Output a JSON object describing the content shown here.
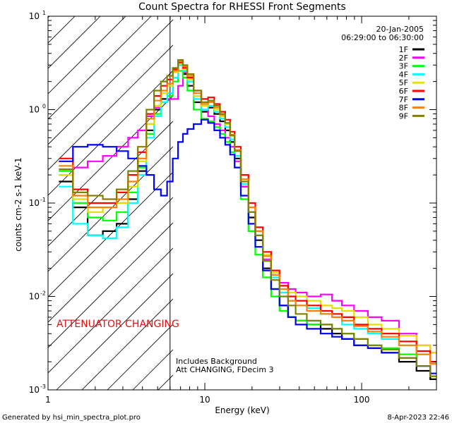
{
  "chart_data": {
    "type": "line",
    "title": "Count Spectra for RHESSI Front Segments",
    "xlabel": "Energy (keV)",
    "ylabel": "counts cm-2 s-1 keV-1",
    "xscale": "log",
    "yscale": "log",
    "xlim": [
      1,
      300
    ],
    "ylim": [
      0.001,
      10
    ],
    "x_tick_labels": [
      "1",
      "10",
      "100"
    ],
    "y_tick_labels": [
      "10",
      "10",
      "10",
      "10",
      "10"
    ],
    "y_tick_exponents": [
      "-3",
      "-2",
      "-1",
      "0",
      "1"
    ],
    "legend": {
      "position": "top-right",
      "date": "20-Jan-2005",
      "time_range": "06:29:00 to 06:30:00"
    },
    "annotations": {
      "attenuator": "ATTENUATOR CHANGING",
      "background_note": "Includes Background",
      "att_note": "Att CHANGING, FDecim 3",
      "attenuator_boundary_keV": 6
    },
    "footer_left": "Generated by hsi_min_spectra_plot.pro",
    "footer_right": "8-Apr-2023 22:46",
    "energy_keV": [
      1.3,
      1.6,
      2.0,
      2.5,
      3.0,
      3.5,
      4.0,
      4.5,
      5.0,
      5.5,
      6.0,
      6.5,
      7.0,
      7.5,
      8.0,
      9.0,
      10.0,
      11,
      12,
      13,
      14,
      15,
      16,
      18,
      20,
      22,
      25,
      28,
      32,
      36,
      40,
      50,
      60,
      70,
      80,
      100,
      120,
      150,
      200,
      250,
      300
    ],
    "series": [
      {
        "name": "1F",
        "color": "#000000",
        "values": [
          0.17,
          0.09,
          0.045,
          0.05,
          0.06,
          0.11,
          0.22,
          0.6,
          1.0,
          1.3,
          1.5,
          2.2,
          3.0,
          2.4,
          1.8,
          1.2,
          0.95,
          1.05,
          0.9,
          0.75,
          0.6,
          0.45,
          0.3,
          0.15,
          0.07,
          0.04,
          0.02,
          0.012,
          0.008,
          0.006,
          0.0055,
          0.005,
          0.0045,
          0.004,
          0.0035,
          0.003,
          0.0028,
          0.0025,
          0.002,
          0.0016,
          0.0013
        ]
      },
      {
        "name": "2F",
        "color": "#ff00ff",
        "values": [
          0.2,
          0.24,
          0.28,
          0.32,
          0.4,
          0.5,
          0.6,
          0.85,
          1.05,
          1.2,
          1.3,
          1.3,
          1.8,
          2.5,
          2.2,
          1.4,
          1.0,
          0.85,
          0.7,
          0.6,
          0.5,
          0.4,
          0.28,
          0.15,
          0.08,
          0.045,
          0.025,
          0.018,
          0.014,
          0.012,
          0.011,
          0.01,
          0.0105,
          0.009,
          0.008,
          0.007,
          0.006,
          0.0055,
          0.004,
          0.003,
          0.0025
        ]
      },
      {
        "name": "3F",
        "color": "#00ff00",
        "values": [
          0.22,
          0.1,
          0.07,
          0.065,
          0.08,
          0.13,
          0.24,
          0.55,
          0.9,
          1.2,
          1.4,
          2.0,
          2.6,
          2.2,
          1.6,
          1.0,
          0.8,
          0.75,
          0.65,
          0.55,
          0.45,
          0.35,
          0.24,
          0.11,
          0.05,
          0.028,
          0.016,
          0.01,
          0.007,
          0.006,
          0.0055,
          0.005,
          0.005,
          0.0045,
          0.004,
          0.0035,
          0.003,
          0.0028,
          0.0024,
          0.0018,
          0.0014
        ]
      },
      {
        "name": "4F",
        "color": "#00ffff",
        "values": [
          0.15,
          0.06,
          0.045,
          0.042,
          0.055,
          0.1,
          0.2,
          0.5,
          0.85,
          1.2,
          1.5,
          2.2,
          3.0,
          2.6,
          2.0,
          1.3,
          1.0,
          1.1,
          0.95,
          0.8,
          0.65,
          0.48,
          0.32,
          0.16,
          0.08,
          0.045,
          0.024,
          0.016,
          0.011,
          0.009,
          0.008,
          0.0075,
          0.0065,
          0.006,
          0.005,
          0.0045,
          0.004,
          0.0035,
          0.003,
          0.0024,
          0.002
        ]
      },
      {
        "name": "5F",
        "color": "#e0e000",
        "values": [
          0.2,
          0.11,
          0.08,
          0.09,
          0.1,
          0.15,
          0.28,
          0.7,
          1.1,
          1.5,
          1.8,
          2.5,
          3.1,
          2.7,
          2.1,
          1.4,
          1.1,
          1.2,
          1.0,
          0.85,
          0.7,
          0.52,
          0.36,
          0.18,
          0.09,
          0.05,
          0.028,
          0.018,
          0.013,
          0.011,
          0.01,
          0.009,
          0.008,
          0.0075,
          0.007,
          0.006,
          0.005,
          0.0045,
          0.0038,
          0.003,
          0.0025
        ]
      },
      {
        "name": "6F",
        "color": "#ff0000",
        "values": [
          0.3,
          0.14,
          0.1,
          0.1,
          0.13,
          0.2,
          0.35,
          0.9,
          1.4,
          1.8,
          2.1,
          2.7,
          3.2,
          2.8,
          2.2,
          1.6,
          1.3,
          1.35,
          1.15,
          0.95,
          0.78,
          0.58,
          0.4,
          0.2,
          0.1,
          0.055,
          0.03,
          0.019,
          0.013,
          0.01,
          0.009,
          0.008,
          0.007,
          0.0065,
          0.006,
          0.005,
          0.0045,
          0.004,
          0.0033,
          0.0026,
          0.002
        ]
      },
      {
        "name": "7F",
        "color": "#0000ff",
        "values": [
          0.28,
          0.4,
          0.42,
          0.4,
          0.36,
          0.3,
          0.25,
          0.2,
          0.14,
          0.12,
          0.17,
          0.3,
          0.45,
          0.55,
          0.62,
          0.7,
          0.78,
          0.72,
          0.6,
          0.5,
          0.42,
          0.33,
          0.24,
          0.12,
          0.06,
          0.034,
          0.019,
          0.012,
          0.008,
          0.006,
          0.005,
          0.0045,
          0.004,
          0.0037,
          0.0035,
          0.003,
          0.0028,
          0.0025,
          0.0022,
          0.0018,
          0.0015
        ]
      },
      {
        "name": "8F",
        "color": "#ff8000",
        "values": [
          0.25,
          0.12,
          0.09,
          0.09,
          0.11,
          0.17,
          0.3,
          0.8,
          1.25,
          1.6,
          1.9,
          2.6,
          3.3,
          2.9,
          2.3,
          1.5,
          1.15,
          1.2,
          1.05,
          0.88,
          0.72,
          0.54,
          0.37,
          0.18,
          0.09,
          0.05,
          0.027,
          0.017,
          0.012,
          0.009,
          0.008,
          0.007,
          0.0065,
          0.006,
          0.0055,
          0.0048,
          0.0042,
          0.0037,
          0.003,
          0.0024,
          0.0019
        ]
      },
      {
        "name": "9F",
        "color": "#808000",
        "values": [
          0.23,
          0.13,
          0.12,
          0.11,
          0.14,
          0.22,
          0.4,
          1.0,
          1.6,
          2.0,
          2.3,
          2.8,
          3.4,
          3.0,
          2.4,
          1.6,
          1.2,
          1.25,
          1.1,
          0.9,
          0.72,
          0.53,
          0.36,
          0.17,
          0.08,
          0.045,
          0.024,
          0.015,
          0.01,
          0.008,
          0.0065,
          0.0055,
          0.005,
          0.0045,
          0.004,
          0.0035,
          0.003,
          0.0027,
          0.0022,
          0.0018,
          0.0014
        ]
      }
    ]
  }
}
